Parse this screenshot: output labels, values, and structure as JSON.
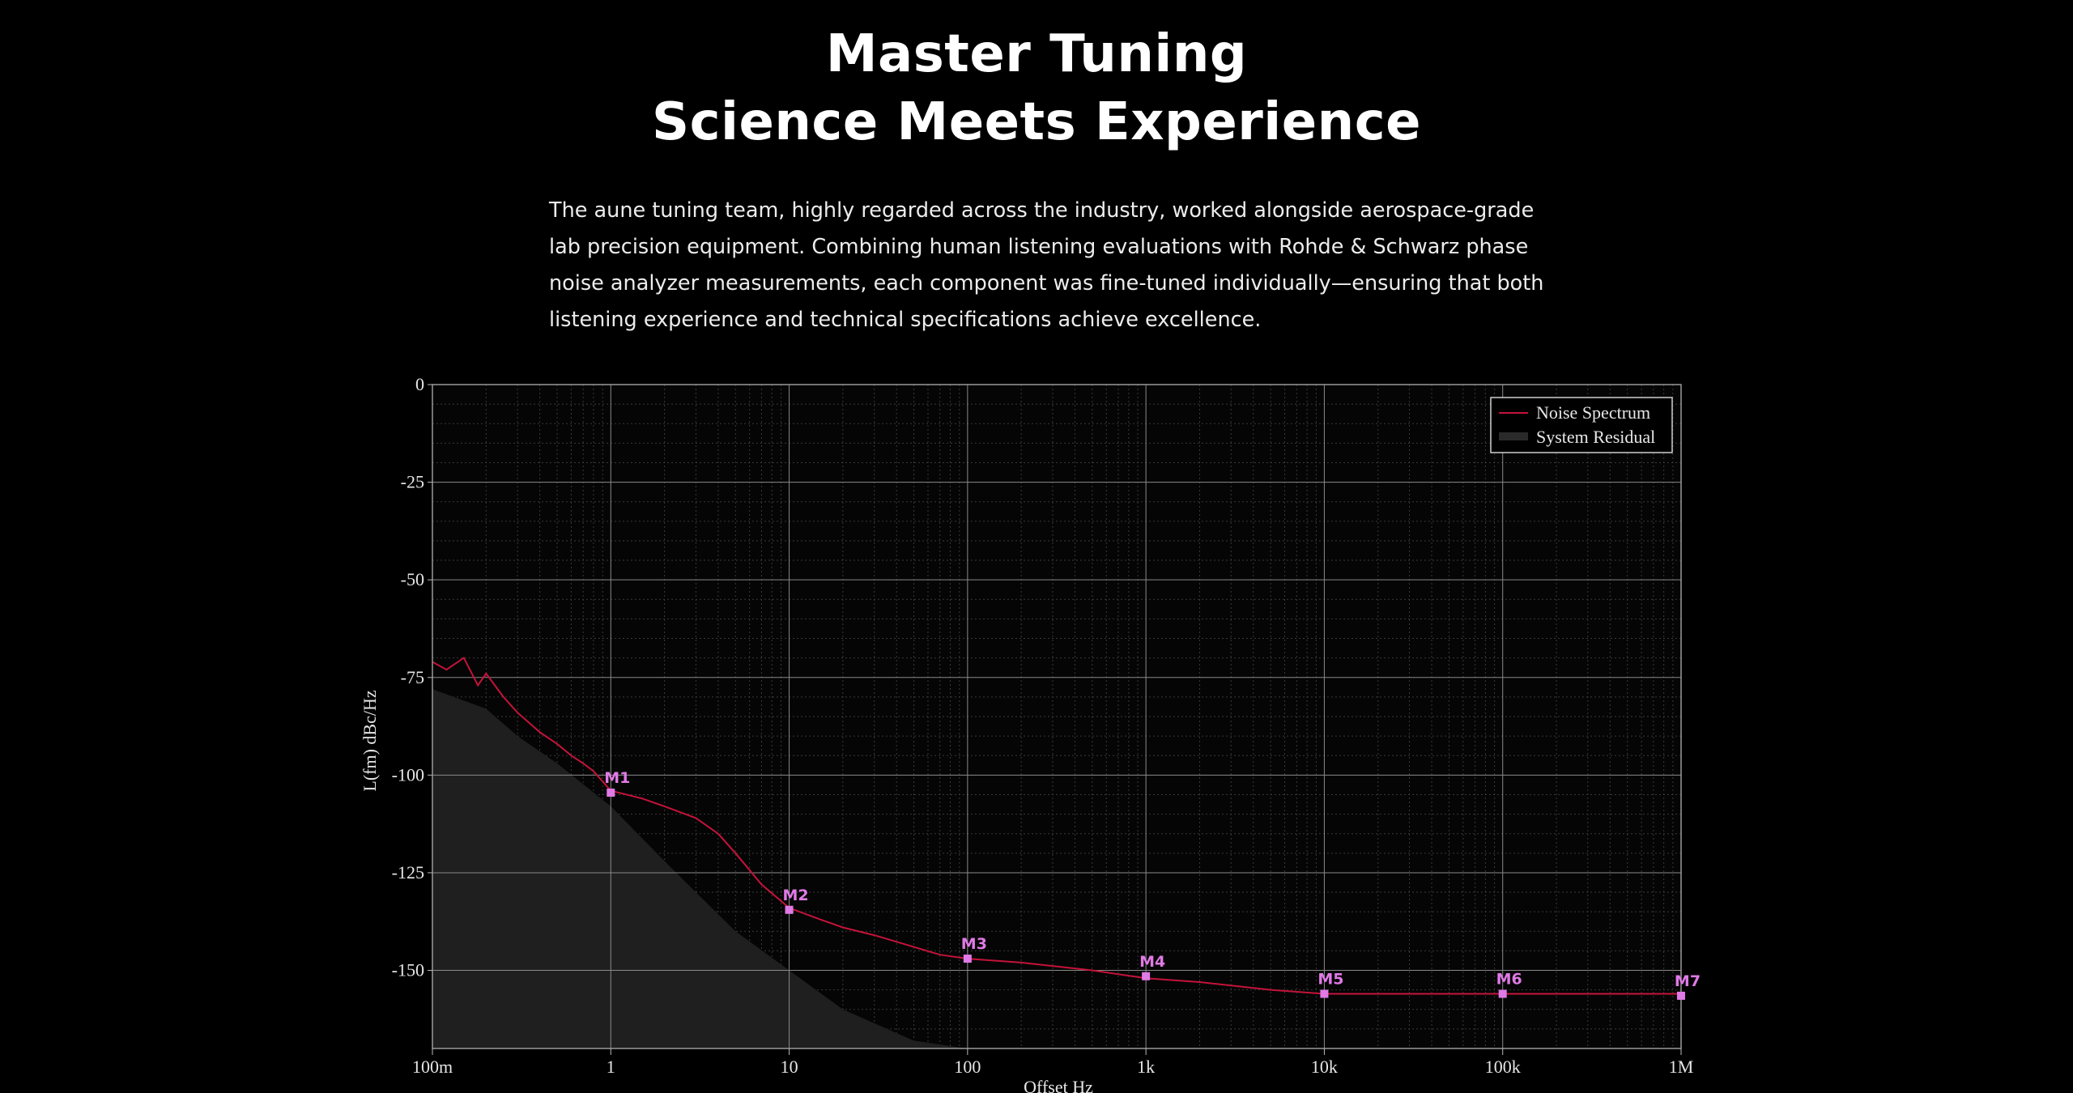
{
  "header": {
    "title_line1": "Master Tuning",
    "title_line2": "Science Meets Experience"
  },
  "description": {
    "lines": [
      "The aune tuning team, highly regarded across the industry, worked alongside aerospace-grade",
      "lab precision equipment. Combining human listening evaluations with Rohde & Schwarz phase",
      "noise analyzer measurements, each component was fine-tuned individually—ensuring that both",
      "listening experience and technical specifications achieve excellence."
    ]
  },
  "chart_data": {
    "type": "line",
    "xlabel": "Offset Hz",
    "ylabel": "L(fm) dBc/Hz",
    "xscale": "log",
    "xlim": [
      0.1,
      1000000
    ],
    "ylim": [
      -170,
      0
    ],
    "x_ticks": [
      {
        "value": 0.1,
        "label": "100m"
      },
      {
        "value": 1,
        "label": "1"
      },
      {
        "value": 10,
        "label": "10"
      },
      {
        "value": 100,
        "label": "100"
      },
      {
        "value": 1000,
        "label": "1k"
      },
      {
        "value": 10000,
        "label": "10k"
      },
      {
        "value": 100000,
        "label": "100k"
      },
      {
        "value": 1000000,
        "label": "1M"
      }
    ],
    "y_ticks": [
      0,
      -25,
      -50,
      -75,
      -100,
      -125,
      -150
    ],
    "grid": true,
    "legend_position": "top-right",
    "series": [
      {
        "name": "Noise Spectrum",
        "color": "#c4133a",
        "x": [
          0.1,
          0.12,
          0.15,
          0.18,
          0.2,
          0.25,
          0.3,
          0.4,
          0.5,
          0.6,
          0.7,
          0.8,
          1,
          1.5,
          2,
          3,
          4,
          5,
          7,
          10,
          15,
          20,
          30,
          50,
          70,
          100,
          200,
          500,
          1000,
          2000,
          5000,
          10000,
          20000,
          50000,
          100000,
          200000,
          500000,
          1000000
        ],
        "y": [
          -71,
          -73,
          -70,
          -77,
          -74,
          -80,
          -84,
          -89,
          -92,
          -95,
          -97,
          -99,
          -104,
          -106,
          -108,
          -111,
          -115,
          -120,
          -128,
          -134,
          -137,
          -139,
          -141,
          -144,
          -146,
          -147,
          -148,
          -150,
          -152,
          -153,
          -155,
          -156,
          -156,
          -156,
          -156,
          -156,
          -156,
          -156
        ]
      },
      {
        "name": "System Residual",
        "color": "#1f1f1f",
        "x": [
          0.1,
          0.2,
          0.3,
          0.5,
          1,
          2,
          3,
          5,
          10,
          20,
          50,
          100,
          200
        ],
        "y": [
          -78,
          -83,
          -90,
          -97,
          -108,
          -122,
          -130,
          -140,
          -150,
          -160,
          -168,
          -170,
          -170
        ]
      }
    ],
    "markers": [
      {
        "label": "M1",
        "x": 1,
        "y": -104.5
      },
      {
        "label": "M2",
        "x": 10,
        "y": -134.5
      },
      {
        "label": "M3",
        "x": 100,
        "y": -147
      },
      {
        "label": "M4",
        "x": 1000,
        "y": -151.5
      },
      {
        "label": "M5",
        "x": 10000,
        "y": -156
      },
      {
        "label": "M6",
        "x": 100000,
        "y": -156
      },
      {
        "label": "M7",
        "x": 1000000,
        "y": -156.5
      }
    ]
  }
}
